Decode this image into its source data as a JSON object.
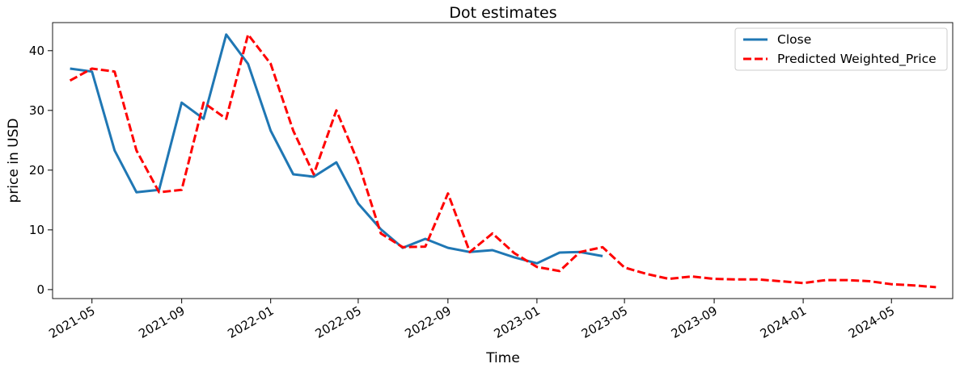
{
  "chart_data": {
    "type": "line",
    "title": "Dot estimates",
    "xlabel": "Time",
    "ylabel": "price in USD",
    "xlim": [
      "2021-03-08",
      "2024-07-24"
    ],
    "ylim": [
      -1.5,
      44.7
    ],
    "x_ticks": [
      "2021-05",
      "2021-09",
      "2022-01",
      "2022-05",
      "2022-09",
      "2023-01",
      "2023-05",
      "2023-09",
      "2024-01",
      "2024-05"
    ],
    "y_ticks": [
      0,
      10,
      20,
      30,
      40
    ],
    "grid": false,
    "legend_position": "top-right",
    "series": [
      {
        "name": "Close",
        "color": "#1f77b4",
        "linestyle": "solid",
        "x": [
          "2021-04-01",
          "2021-05-01",
          "2021-06-01",
          "2021-07-01",
          "2021-08-01",
          "2021-09-01",
          "2021-10-01",
          "2021-11-01",
          "2021-12-01",
          "2022-01-01",
          "2022-02-01",
          "2022-03-01",
          "2022-04-01",
          "2022-05-01",
          "2022-06-01",
          "2022-07-01",
          "2022-08-01",
          "2022-09-01",
          "2022-10-01",
          "2022-11-01",
          "2022-12-01",
          "2023-01-01",
          "2023-02-01",
          "2023-03-01",
          "2023-04-01"
        ],
        "values": [
          37.0,
          36.5,
          23.3,
          16.3,
          16.7,
          31.3,
          28.6,
          42.7,
          37.8,
          26.6,
          19.3,
          18.9,
          21.3,
          14.4,
          10.1,
          7.0,
          8.5,
          7.0,
          6.3,
          6.6,
          5.4,
          4.4,
          6.2,
          6.3,
          5.6
        ]
      },
      {
        "name": "Predicted Weighted_Price",
        "color": "#ff0000",
        "linestyle": "dashed",
        "x": [
          "2021-04-01",
          "2021-05-01",
          "2021-06-01",
          "2021-07-01",
          "2021-08-01",
          "2021-09-01",
          "2021-10-01",
          "2021-11-01",
          "2021-12-01",
          "2022-01-01",
          "2022-02-01",
          "2022-03-01",
          "2022-04-01",
          "2022-05-01",
          "2022-06-01",
          "2022-07-01",
          "2022-08-01",
          "2022-09-01",
          "2022-10-01",
          "2022-11-01",
          "2022-12-01",
          "2023-01-01",
          "2023-02-01",
          "2023-03-01",
          "2023-04-01",
          "2023-05-01",
          "2023-06-01",
          "2023-07-01",
          "2023-08-01",
          "2023-09-01",
          "2023-10-01",
          "2023-11-01",
          "2023-12-01",
          "2024-01-01",
          "2024-02-01",
          "2024-03-01",
          "2024-04-01",
          "2024-05-01",
          "2024-06-01",
          "2024-07-01"
        ],
        "values": [
          35.0,
          37.0,
          36.5,
          23.3,
          16.3,
          16.7,
          31.3,
          28.6,
          42.7,
          37.8,
          26.6,
          19.3,
          30.0,
          21.3,
          9.4,
          7.1,
          7.2,
          16.1,
          6.3,
          9.4,
          6.1,
          3.8,
          3.1,
          6.3,
          7.1,
          3.7,
          2.6,
          1.8,
          2.2,
          1.8,
          1.7,
          1.7,
          1.4,
          1.1,
          1.6,
          1.6,
          1.4,
          0.9,
          0.7,
          0.4
        ]
      }
    ]
  }
}
